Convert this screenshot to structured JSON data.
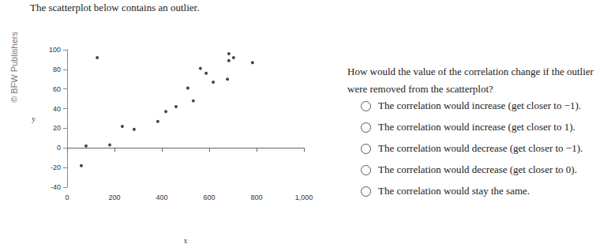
{
  "title": "The scatterplot below contains an outlier.",
  "publisher": "© BFW Publishers",
  "question": "How would the value of the correlation change if the outlier were removed from the scatterplot?",
  "options": [
    "The correlation would increase (get closer to −1).",
    "The correlation would increase (get closer to 1).",
    "The correlation would decrease (get closer to −1).",
    "The correlation would decrease (get closer to 0).",
    "The correlation would stay the same."
  ],
  "chart_data": {
    "type": "scatter",
    "x_label": "x",
    "y_label": "y",
    "x": [
      60,
      80,
      180,
      233,
      283,
      383,
      417,
      460,
      510,
      533,
      563,
      587,
      617,
      677,
      683,
      683,
      703,
      783,
      127
    ],
    "values": [
      -18,
      2,
      3,
      22,
      19,
      27,
      37,
      42,
      61,
      48,
      81,
      76,
      67,
      70,
      89,
      96,
      92,
      87,
      92
    ],
    "color": "#1a1a1a",
    "xlim": [
      0,
      1000
    ],
    "xticks": [
      0,
      200,
      400,
      600,
      800,
      1000
    ],
    "ylim": [
      -40,
      100
    ],
    "yticks": [
      -40,
      -20,
      0,
      20,
      40,
      60,
      80,
      100
    ],
    "grid": false
  }
}
